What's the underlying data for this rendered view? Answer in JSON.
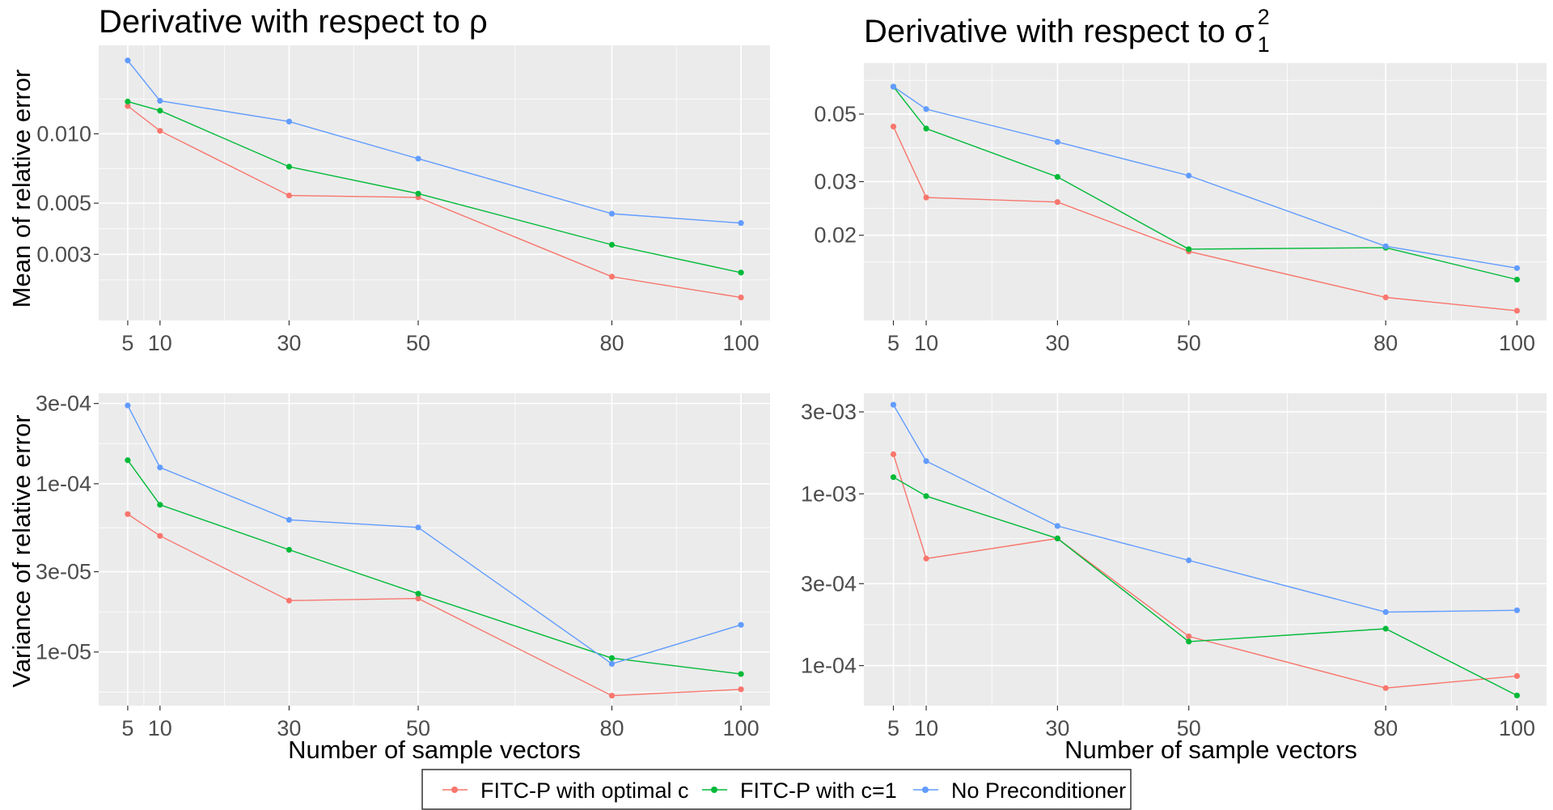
{
  "chart_data": [
    {
      "type": "line",
      "title": "Derivative with respect to ρ",
      "ylabel": "Mean of relative error",
      "xlabel": "",
      "y_scale": "log10",
      "x": [
        5,
        10,
        30,
        50,
        80,
        100
      ],
      "x_ticks": [
        5,
        10,
        30,
        50,
        80,
        100
      ],
      "y_ticks": [
        0.003,
        0.005,
        0.01
      ],
      "y_tick_labels": [
        "0.003",
        "0.005",
        "0.010"
      ],
      "ylim": [
        0.00155,
        0.0242
      ],
      "grid": true,
      "series": [
        {
          "name": "FITC-P with optimal c",
          "color": "#F8766D",
          "values": [
            0.0132,
            0.0103,
            0.0054,
            0.0053,
            0.0024,
            0.00195
          ]
        },
        {
          "name": "FITC-P with c=1",
          "color": "#00BA38",
          "values": [
            0.0138,
            0.0126,
            0.0072,
            0.0055,
            0.0033,
            0.0025
          ]
        },
        {
          "name": "No Preconditioner",
          "color": "#619CFF",
          "values": [
            0.0208,
            0.0139,
            0.0113,
            0.0078,
            0.0045,
            0.0041
          ]
        }
      ]
    },
    {
      "type": "line",
      "title": "Derivative with respect to σ",
      "title_sup": "2",
      "title_sub": "1",
      "ylabel": "",
      "xlabel": "",
      "y_scale": "log10",
      "x": [
        5,
        10,
        30,
        50,
        80,
        100
      ],
      "x_ticks": [
        5,
        10,
        30,
        50,
        80,
        100
      ],
      "y_ticks": [
        0.02,
        0.03,
        0.05
      ],
      "y_tick_labels": [
        "0.02",
        "0.03",
        "0.05"
      ],
      "ylim": [
        0.0105,
        0.0735
      ],
      "grid": true,
      "series": [
        {
          "name": "FITC-P with optimal c",
          "color": "#F8766D",
          "values": [
            0.0455,
            0.0266,
            0.0257,
            0.0177,
            0.0125,
            0.0113
          ]
        },
        {
          "name": "FITC-P with c=1",
          "color": "#00BA38",
          "values": [
            0.0615,
            0.0448,
            0.0311,
            0.018,
            0.0182,
            0.0143
          ]
        },
        {
          "name": "No Preconditioner",
          "color": "#619CFF",
          "values": [
            0.0615,
            0.0519,
            0.0405,
            0.0314,
            0.0184,
            0.0156
          ]
        }
      ]
    },
    {
      "type": "line",
      "title": "",
      "ylabel": "Variance of relative error",
      "xlabel": "Number of sample vectors",
      "y_scale": "log10",
      "x": [
        5,
        10,
        30,
        50,
        80,
        100
      ],
      "x_ticks": [
        5,
        10,
        30,
        50,
        80,
        100
      ],
      "y_ticks": [
        1e-05,
        3e-05,
        0.0001,
        0.0003
      ],
      "y_tick_labels": [
        "1e-05",
        "3e-05",
        "1e-04",
        "3e-04"
      ],
      "ylim": [
        4.8e-06,
        0.000345
      ],
      "grid": true,
      "series": [
        {
          "name": "FITC-P with optimal c",
          "color": "#F8766D",
          "values": [
            6.6e-05,
            4.9e-05,
            2.02e-05,
            2.08e-05,
            5.5e-06,
            6e-06
          ]
        },
        {
          "name": "FITC-P with c=1",
          "color": "#00BA38",
          "values": [
            0.000138,
            7.5e-05,
            4.05e-05,
            2.22e-05,
            9.2e-06,
            7.4e-06
          ]
        },
        {
          "name": "No Preconditioner",
          "color": "#619CFF",
          "values": [
            0.000292,
            0.000125,
            6.1e-05,
            5.5e-05,
            8.5e-06,
            1.45e-05
          ]
        }
      ]
    },
    {
      "type": "line",
      "title": "",
      "ylabel": "",
      "xlabel": "Number of sample vectors",
      "y_scale": "log10",
      "x": [
        5,
        10,
        30,
        50,
        80,
        100
      ],
      "x_ticks": [
        5,
        10,
        30,
        50,
        80,
        100
      ],
      "y_ticks": [
        0.0001,
        0.0003,
        0.001,
        0.003
      ],
      "y_tick_labels": [
        "1e-04",
        "3e-04",
        "1e-03",
        "3e-03"
      ],
      "ylim": [
        5.85e-05,
        0.00385
      ],
      "grid": true,
      "series": [
        {
          "name": "FITC-P with optimal c",
          "color": "#F8766D",
          "values": [
            0.0017,
            0.00042,
            0.00055,
            0.000148,
            7.4e-05,
            8.7e-05
          ]
        },
        {
          "name": "FITC-P with c=1",
          "color": "#00BA38",
          "values": [
            0.00125,
            0.00097,
            0.00055,
            0.000138,
            0.000164,
            6.7e-05
          ]
        },
        {
          "name": "No Preconditioner",
          "color": "#619CFF",
          "values": [
            0.0033,
            0.00155,
            0.00065,
            0.00041,
            0.000205,
            0.00021
          ]
        }
      ]
    }
  ],
  "legend": {
    "position": "bottom",
    "items": [
      {
        "label": "FITC-P with optimal c",
        "color": "#F8766D"
      },
      {
        "label": "FITC-P with c=1",
        "color": "#00BA38"
      },
      {
        "label": "No Preconditioner",
        "color": "#619CFF"
      }
    ]
  }
}
